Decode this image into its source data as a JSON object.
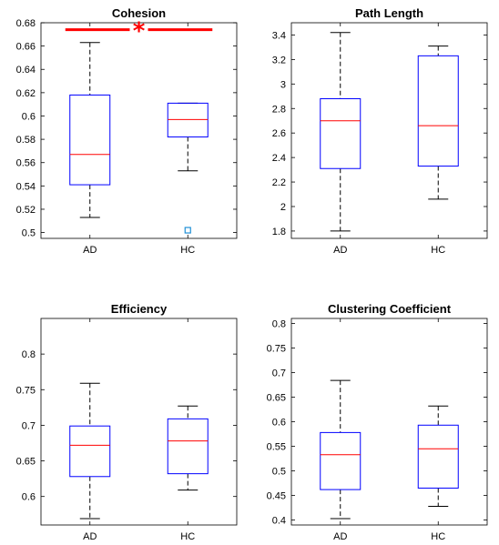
{
  "chart_data": [
    {
      "type": "box",
      "title": "Cohesion",
      "categories": [
        "AD",
        "HC"
      ],
      "ylim": [
        0.495,
        0.68
      ],
      "yticks": [
        0.5,
        0.52,
        0.54,
        0.56,
        0.58,
        0.6,
        0.62,
        0.64,
        0.66,
        0.68
      ],
      "ytick_labels": [
        "0.5",
        "0.52",
        "0.54",
        "0.56",
        "0.58",
        "0.6",
        "0.62",
        "0.64",
        "0.66",
        "0.68"
      ],
      "boxes": [
        {
          "category": "AD",
          "min": 0.513,
          "q1": 0.541,
          "median": 0.567,
          "q3": 0.618,
          "max": 0.663,
          "outliers": []
        },
        {
          "category": "HC",
          "min": 0.553,
          "q1": 0.582,
          "median": 0.597,
          "q3": 0.611,
          "max": 0.611,
          "outliers": [
            0.502
          ]
        }
      ],
      "significance": {
        "label": "*",
        "between": [
          "AD",
          "HC"
        ],
        "y": 0.674,
        "color": "#ff0000"
      }
    },
    {
      "type": "box",
      "title": "Path Length",
      "categories": [
        "AD",
        "HC"
      ],
      "ylim": [
        1.74,
        3.5
      ],
      "yticks": [
        1.8,
        2.0,
        2.2,
        2.4,
        2.6,
        2.8,
        3.0,
        3.2,
        3.4
      ],
      "ytick_labels": [
        "1.8",
        "2",
        "2.2",
        "2.4",
        "2.6",
        "2.8",
        "3",
        "3.2",
        "3.4"
      ],
      "boxes": [
        {
          "category": "AD",
          "min": 1.8,
          "q1": 2.31,
          "median": 2.7,
          "q3": 2.88,
          "max": 3.42,
          "outliers": []
        },
        {
          "category": "HC",
          "min": 2.06,
          "q1": 2.33,
          "median": 2.66,
          "q3": 3.23,
          "max": 3.31,
          "outliers": []
        }
      ]
    },
    {
      "type": "box",
      "title": "Efficiency",
      "categories": [
        "AD",
        "HC"
      ],
      "ylim": [
        0.56,
        0.85
      ],
      "yticks": [
        0.6,
        0.65,
        0.7,
        0.75,
        0.8
      ],
      "ytick_labels": [
        "0.6",
        "0.65",
        "0.7",
        "0.75",
        "0.8"
      ],
      "boxes": [
        {
          "category": "AD",
          "min": 0.569,
          "q1": 0.628,
          "median": 0.672,
          "q3": 0.699,
          "max": 0.759,
          "outliers": []
        },
        {
          "category": "HC",
          "min": 0.609,
          "q1": 0.632,
          "median": 0.678,
          "q3": 0.709,
          "max": 0.727,
          "outliers": []
        }
      ]
    },
    {
      "type": "box",
      "title": "Clustering Coefficient",
      "categories": [
        "AD",
        "HC"
      ],
      "ylim": [
        0.39,
        0.81
      ],
      "yticks": [
        0.4,
        0.45,
        0.5,
        0.55,
        0.6,
        0.65,
        0.7,
        0.75,
        0.8
      ],
      "ytick_labels": [
        "0.4",
        "0.45",
        "0.5",
        "0.55",
        "0.6",
        "0.65",
        "0.7",
        "0.75",
        "0.8"
      ],
      "boxes": [
        {
          "category": "AD",
          "min": 0.403,
          "q1": 0.462,
          "median": 0.533,
          "q3": 0.578,
          "max": 0.684,
          "outliers": []
        },
        {
          "category": "HC",
          "min": 0.428,
          "q1": 0.465,
          "median": 0.545,
          "q3": 0.593,
          "max": 0.632,
          "outliers": []
        }
      ]
    }
  ],
  "colors": {
    "box": "#0000ff",
    "median": "#ff0000",
    "whisker": "#000000",
    "outlier": "#1f8fd6",
    "significance": "#ff0000"
  }
}
